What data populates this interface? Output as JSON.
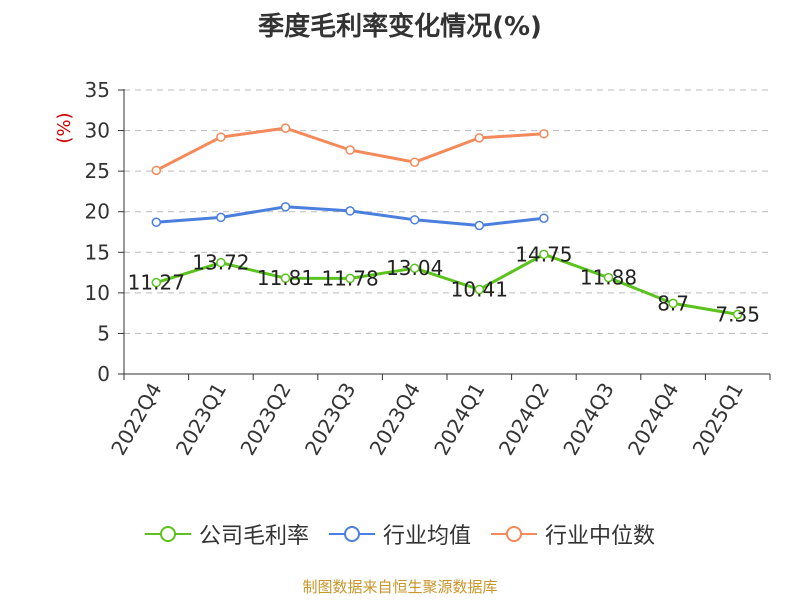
{
  "chart_data": {
    "type": "line",
    "title": "季度毛利率变化情况(%)",
    "ylabel": "(%)",
    "categories": [
      "2022Q4",
      "2023Q1",
      "2023Q2",
      "2023Q3",
      "2023Q4",
      "2024Q1",
      "2024Q2",
      "2024Q3",
      "2024Q4",
      "2025Q1"
    ],
    "ylim": [
      0,
      35
    ],
    "yticks": [
      "0",
      "5",
      "10",
      "15",
      "20",
      "25",
      "30",
      "35"
    ],
    "grid": true,
    "legend_position": "bottom",
    "series": [
      {
        "name": "公司毛利率",
        "color": "#5bc21e",
        "values": [
          11.27,
          13.72,
          11.81,
          11.78,
          13.04,
          10.41,
          14.75,
          11.88,
          8.7,
          7.35
        ],
        "labels": [
          "11.27",
          "13.72",
          "11.81",
          "11.78",
          "13.04",
          "10.41",
          "14.75",
          "11.88",
          "8.7",
          "7.35"
        ]
      },
      {
        "name": "行业均值",
        "color": "#4a7fde",
        "values": [
          18.7,
          19.3,
          20.6,
          20.1,
          19.0,
          18.3,
          19.2,
          null,
          null,
          null
        ]
      },
      {
        "name": "行业中位数",
        "color": "#f4895a",
        "values": [
          25.1,
          29.2,
          30.3,
          27.6,
          26.1,
          29.1,
          29.6,
          null,
          null,
          null
        ]
      }
    ]
  },
  "source": "制图数据来自恒生聚源数据库"
}
